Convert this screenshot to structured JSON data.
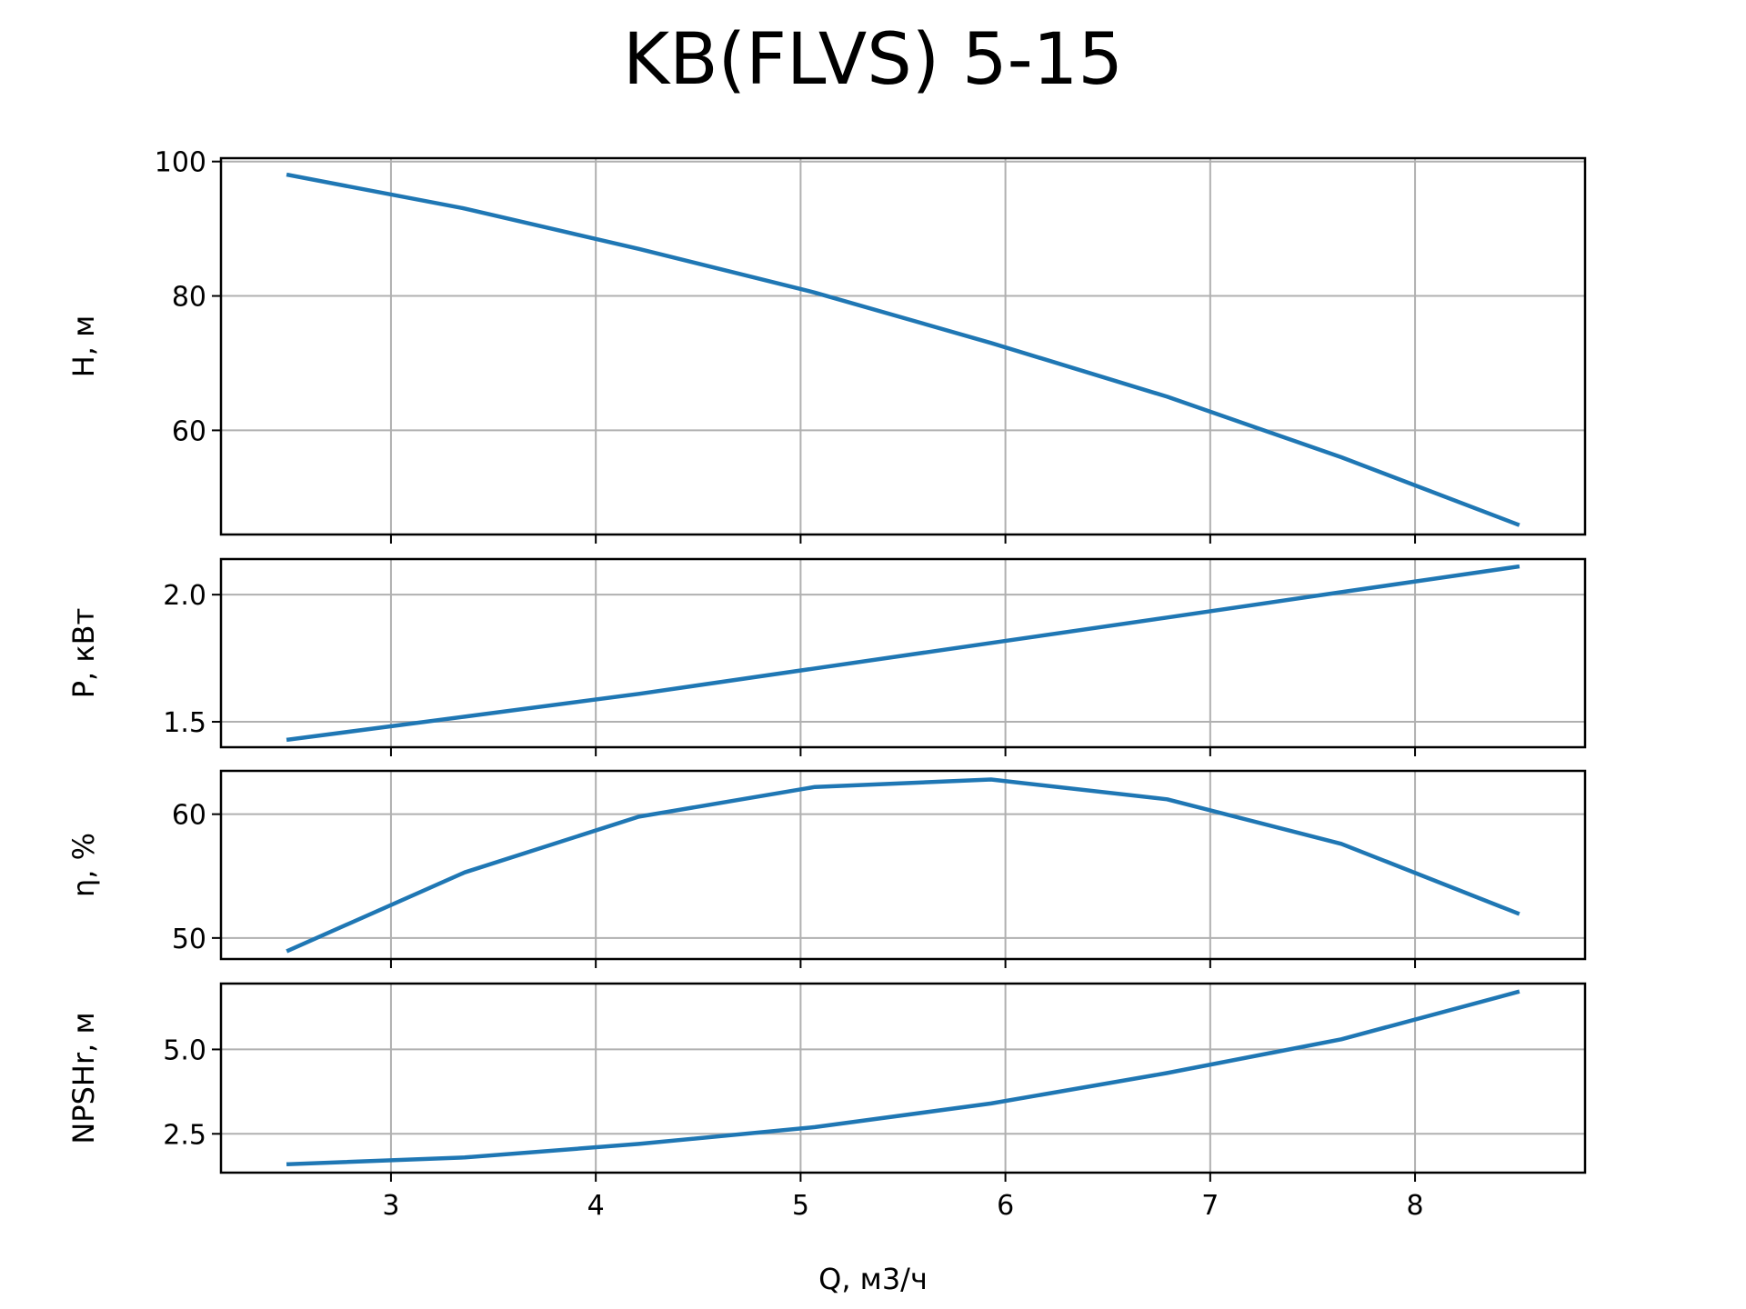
{
  "figure": {
    "title": "KB(FLVS) 5-15",
    "xlabel": "Q, м3/ч"
  },
  "style": {
    "line_color": "#1f77b4",
    "grid_color": "#b0b0b0",
    "axes_color": "#000000"
  },
  "chart_data": [
    {
      "type": "line",
      "ylabel": "H, м",
      "xlim": [
        2.17,
        8.83
      ],
      "ylim": [
        44.5,
        100.5
      ],
      "grid": true,
      "x": [
        2.5,
        3.36,
        4.21,
        5.07,
        5.93,
        6.79,
        7.64,
        8.5
      ],
      "xticks": [
        "3",
        "4",
        "5",
        "6",
        "7",
        "8"
      ],
      "yticks": [
        "60",
        "80",
        "100"
      ],
      "series": [
        {
          "values": [
            98,
            93,
            87,
            80.5,
            73,
            65,
            56,
            46
          ]
        }
      ]
    },
    {
      "type": "line",
      "ylabel": "P, кВт",
      "xlim": [
        2.17,
        8.83
      ],
      "ylim": [
        1.4,
        2.14
      ],
      "grid": true,
      "x": [
        2.5,
        3.36,
        4.21,
        5.07,
        5.93,
        6.79,
        7.64,
        8.5
      ],
      "xticks": [
        "3",
        "4",
        "5",
        "6",
        "7",
        "8"
      ],
      "yticks": [
        "1.5",
        "2.0"
      ],
      "series": [
        {
          "values": [
            1.43,
            1.52,
            1.61,
            1.71,
            1.81,
            1.91,
            2.01,
            2.11
          ]
        }
      ]
    },
    {
      "type": "line",
      "ylabel": "η, %",
      "xlim": [
        2.17,
        8.83
      ],
      "ylim": [
        48.3,
        63.5
      ],
      "grid": true,
      "x": [
        2.5,
        3.36,
        4.21,
        5.07,
        5.93,
        6.79,
        7.64,
        8.5
      ],
      "xticks": [
        "3",
        "4",
        "5",
        "6",
        "7",
        "8"
      ],
      "yticks": [
        "50",
        "60"
      ],
      "series": [
        {
          "values": [
            49,
            55.3,
            59.8,
            62.2,
            62.8,
            61.2,
            57.6,
            52
          ]
        }
      ]
    },
    {
      "type": "line",
      "ylabel": "NPSHr, м",
      "xlim": [
        2.17,
        8.83
      ],
      "ylim": [
        1.35,
        6.95
      ],
      "grid": true,
      "x": [
        2.5,
        3.36,
        4.21,
        5.07,
        5.93,
        6.79,
        7.64,
        8.5
      ],
      "xticks": [
        "3",
        "4",
        "5",
        "6",
        "7",
        "8"
      ],
      "yticks": [
        "2.5",
        "5.0"
      ],
      "series": [
        {
          "values": [
            1.6,
            1.8,
            2.2,
            2.7,
            3.4,
            4.3,
            5.3,
            6.7
          ]
        }
      ]
    }
  ]
}
